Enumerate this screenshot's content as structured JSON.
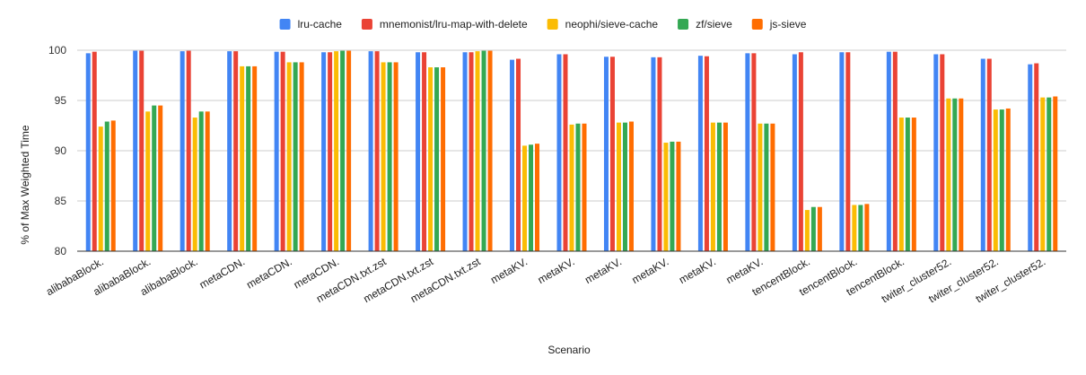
{
  "chart_data": {
    "type": "bar",
    "title": "",
    "xlabel": "Scenario",
    "ylabel": "% of Max Weighted Time",
    "ylim": [
      80,
      100
    ],
    "yticks": [
      80,
      85,
      90,
      95,
      100
    ],
    "grid": true,
    "legend_position": "top-center",
    "categories": [
      "alibabaBlock.",
      "alibabaBlock.",
      "alibabaBlock.",
      "metaCDN.",
      "metaCDN.",
      "metaCDN.",
      "metaCDN.txt.zst",
      "metaCDN.txt.zst",
      "metaCDN.txt.zst",
      "metaKV.",
      "metaKV.",
      "metaKV.",
      "metaKV.",
      "metaKV.",
      "metaKV.",
      "tencentBlock.",
      "tencentBlock.",
      "tencentBlock.",
      "twiter_cluster52.",
      "twiter_cluster52.",
      "twiter_cluster52."
    ],
    "series": [
      {
        "name": "lru-cache",
        "color": "#4285F4",
        "values": [
          99.7,
          99.95,
          99.9,
          99.9,
          99.85,
          99.8,
          99.9,
          99.8,
          99.8,
          99.05,
          99.6,
          99.35,
          99.3,
          99.45,
          99.7,
          99.6,
          99.8,
          99.85,
          99.6,
          99.15,
          98.6
        ]
      },
      {
        "name": "mnemonist/lru-map-with-delete",
        "color": "#EA4335",
        "values": [
          99.85,
          99.95,
          99.95,
          99.9,
          99.85,
          99.8,
          99.9,
          99.8,
          99.8,
          99.15,
          99.6,
          99.35,
          99.3,
          99.4,
          99.7,
          99.8,
          99.8,
          99.85,
          99.6,
          99.15,
          98.7
        ]
      },
      {
        "name": "neophi/sieve-cache",
        "color": "#FBBC04",
        "values": [
          92.4,
          93.9,
          93.3,
          98.4,
          98.8,
          99.9,
          98.8,
          98.3,
          99.9,
          90.5,
          92.6,
          92.8,
          90.8,
          92.8,
          92.7,
          84.1,
          84.6,
          93.3,
          95.2,
          94.1,
          95.3
        ]
      },
      {
        "name": "zf/sieve",
        "color": "#34A853",
        "values": [
          92.9,
          94.5,
          93.9,
          98.4,
          98.8,
          99.95,
          98.8,
          98.3,
          99.95,
          90.6,
          92.7,
          92.8,
          90.9,
          92.8,
          92.7,
          84.4,
          84.6,
          93.3,
          95.2,
          94.1,
          95.3
        ]
      },
      {
        "name": "js-sieve",
        "color": "#FF6D01",
        "values": [
          93.0,
          94.5,
          93.9,
          98.4,
          98.8,
          99.95,
          98.8,
          98.3,
          99.95,
          90.7,
          92.7,
          92.9,
          90.9,
          92.8,
          92.7,
          84.4,
          84.7,
          93.3,
          95.2,
          94.2,
          95.4
        ]
      }
    ]
  }
}
